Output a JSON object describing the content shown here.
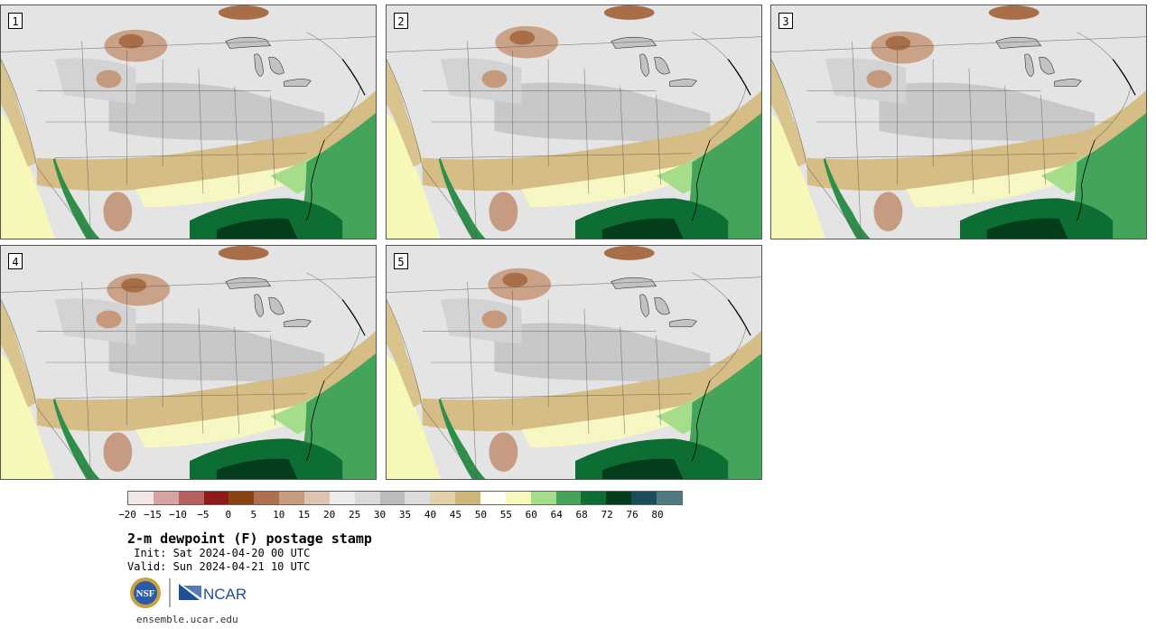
{
  "panels": [
    {
      "number": "1"
    },
    {
      "number": "2"
    },
    {
      "number": "3"
    },
    {
      "number": "4"
    },
    {
      "number": "5"
    }
  ],
  "colorbar": {
    "colors": [
      "#f3e6e6",
      "#d8a3a3",
      "#b86060",
      "#8f1a1a",
      "#8a4412",
      "#ad7150",
      "#c89a7e",
      "#dfc3b2",
      "#ececec",
      "#d9d9d9",
      "#bcbcbc",
      "#dcdcdc",
      "#e2d2aa",
      "#cfb57a",
      "#fffff5",
      "#f8f8bc",
      "#a5dd8a",
      "#44a55a",
      "#0d6e33",
      "#043d1c",
      "#1c4e5a",
      "#4e7c80"
    ],
    "tick_labels": [
      "−20",
      "−15",
      "−10",
      "−5",
      "0",
      "5",
      "10",
      "15",
      "20",
      "25",
      "30",
      "35",
      "40",
      "45",
      "50",
      "55",
      "60",
      "64",
      "68",
      "72",
      "76",
      "80"
    ]
  },
  "title": "2-m dewpoint (F) postage stamp",
  "init_line": " Init: Sat 2024-04-20 00 UTC",
  "valid_line": "Valid: Sun 2024-04-21 10 UTC",
  "logos": {
    "nsf": "NSF",
    "ncar": "NCAR"
  },
  "url": "ensemble.ucar.edu"
}
